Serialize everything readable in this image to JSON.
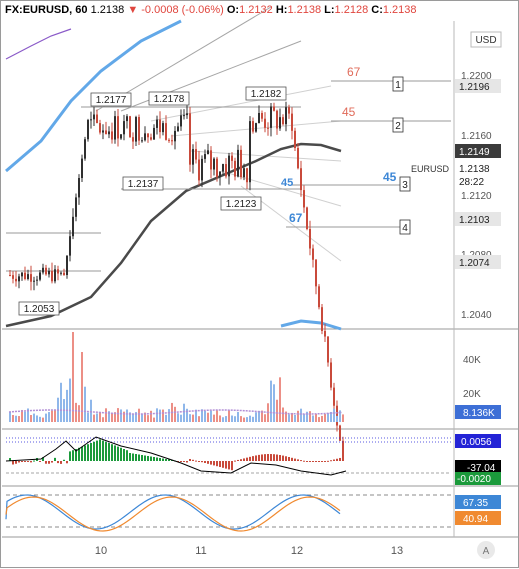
{
  "header": {
    "symbol": "FX:EURUSD, 60",
    "last": "1.2138",
    "change": "-0.0008 (-0.06%)",
    "open_label": "O:",
    "open": "1.2132",
    "high_label": "H:",
    "high": "1.2138",
    "low_label": "L:",
    "low": "1.2128",
    "close_label": "C:",
    "close": "1.2138",
    "arrow_icon": "triangle-down-icon",
    "colors": {
      "down": "#e0463e",
      "up": "#26a69a"
    }
  },
  "price_axis": {
    "currency": "USD",
    "ticks": [
      "1.2200",
      "1.2160",
      "1.2120",
      "1.2080",
      "1.2040"
    ],
    "price_label_top": "1.2196",
    "price_label_ma": "1.2149",
    "price_label_last": "1.2138",
    "countdown": "28:22",
    "price_label_4": "1.2103",
    "price_label_5": "1.2074"
  },
  "price_pane": {
    "symbol_tag": "EURUSD",
    "annotations": [
      "1.2177",
      "1.2178",
      "1.2182",
      "1.2137",
      "1.2123",
      "1.2053"
    ],
    "levels": [
      {
        "marker": "1",
        "label": "67",
        "color": "#e06b5a",
        "price": 1.2196
      },
      {
        "marker": "2",
        "label": "45",
        "color": "#e06b5a",
        "price": 1.217
      },
      {
        "marker": "3",
        "label": "45",
        "color": "#3d87d6",
        "price": 1.2135
      },
      {
        "marker": "4",
        "label": "67",
        "color": "#3d87d6",
        "price": 1.2103
      }
    ],
    "colors": {
      "up": "#2f2f2f",
      "down": "#c94a3b",
      "ma": "#4a4a4a",
      "band": "#62a8e8",
      "purple": "#8a5ac8"
    }
  },
  "volume_pane": {
    "ticks": [
      "40K",
      "20K"
    ],
    "current": "8.136K",
    "colors": {
      "up": "#8fb7ea",
      "down": "#ec8f86",
      "avg": "#b28fd6",
      "label": "#3d6fd6"
    }
  },
  "macd_pane": {
    "value_top": "0.0056",
    "value_mid": "-37.04",
    "value_bottom": "-0.0020",
    "colors": {
      "top": "#2323d6",
      "mid": "#000000",
      "bottom": "#1b9a3b"
    }
  },
  "stoch_pane": {
    "value_k": "67.35",
    "value_d": "40.94",
    "colors": {
      "k": "#3d87d6",
      "d": "#f08a30"
    }
  },
  "time_axis": {
    "labels": [
      "10",
      "11",
      "12",
      "13"
    ],
    "auto_button": "A"
  }
}
